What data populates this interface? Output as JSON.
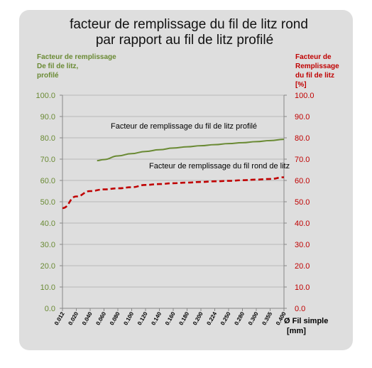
{
  "chart_data": {
    "type": "line",
    "title_lines": [
      "facteur de remplissage  du fil de litz rond",
      "par rapport au fil de litz profilé"
    ],
    "y_left_label_lines": [
      "Facteur de remplissage",
      "De fil de litz,",
      "profilé"
    ],
    "y_right_label_lines": [
      "Facteur de",
      "Remplissage",
      "du fil de litz",
      "[%]"
    ],
    "xlabel_lines": [
      "Ø Fil simple",
      "[mm]"
    ],
    "categories": [
      "0.012",
      "0.020",
      "0.040",
      "0.060",
      "0.080",
      "0.100",
      "0.120",
      "0.140",
      "0.160",
      "0.180",
      "0.200",
      "0.224",
      "0.250",
      "0.280",
      "0.300",
      "0.355",
      "0.400"
    ],
    "ylim": [
      0,
      100
    ],
    "y_ticks": [
      "0.0",
      "10.0",
      "20.0",
      "30.0",
      "40.0",
      "50.0",
      "60.0",
      "70.0",
      "80.0",
      "90.0",
      "100.0"
    ],
    "y_ticks_right": [
      "0.0",
      "10.0",
      "20.0",
      "30.0",
      "40.0",
      "50.0",
      "60.0",
      "70.0",
      "80.0",
      "90.0",
      "100.0"
    ],
    "series": [
      {
        "name": "Facteur de remplissage du fil de litz profilé",
        "color": "#6a8a34",
        "style": "solid",
        "x_start_index": 2.5,
        "values": [
          null,
          null,
          null,
          69.8,
          71.5,
          72.6,
          73.6,
          74.4,
          75.2,
          75.8,
          76.3,
          76.8,
          77.3,
          77.7,
          78.2,
          78.7,
          79.3
        ]
      },
      {
        "name": "Facteur de remplissage du fil rond  de litz",
        "color": "#c00000",
        "style": "dashed",
        "values": [
          47.0,
          52.5,
          55.0,
          55.8,
          56.3,
          56.8,
          57.9,
          58.3,
          58.7,
          59.0,
          59.3,
          59.6,
          59.8,
          60.1,
          60.4,
          60.7,
          61.5
        ]
      }
    ],
    "annotations": [
      "Facteur de remplissage du fil de litz profilé",
      "Facteur de remplissage du fil rond  de litz"
    ],
    "left_color": "#6a8a34",
    "right_color": "#c00000",
    "grid": true
  }
}
